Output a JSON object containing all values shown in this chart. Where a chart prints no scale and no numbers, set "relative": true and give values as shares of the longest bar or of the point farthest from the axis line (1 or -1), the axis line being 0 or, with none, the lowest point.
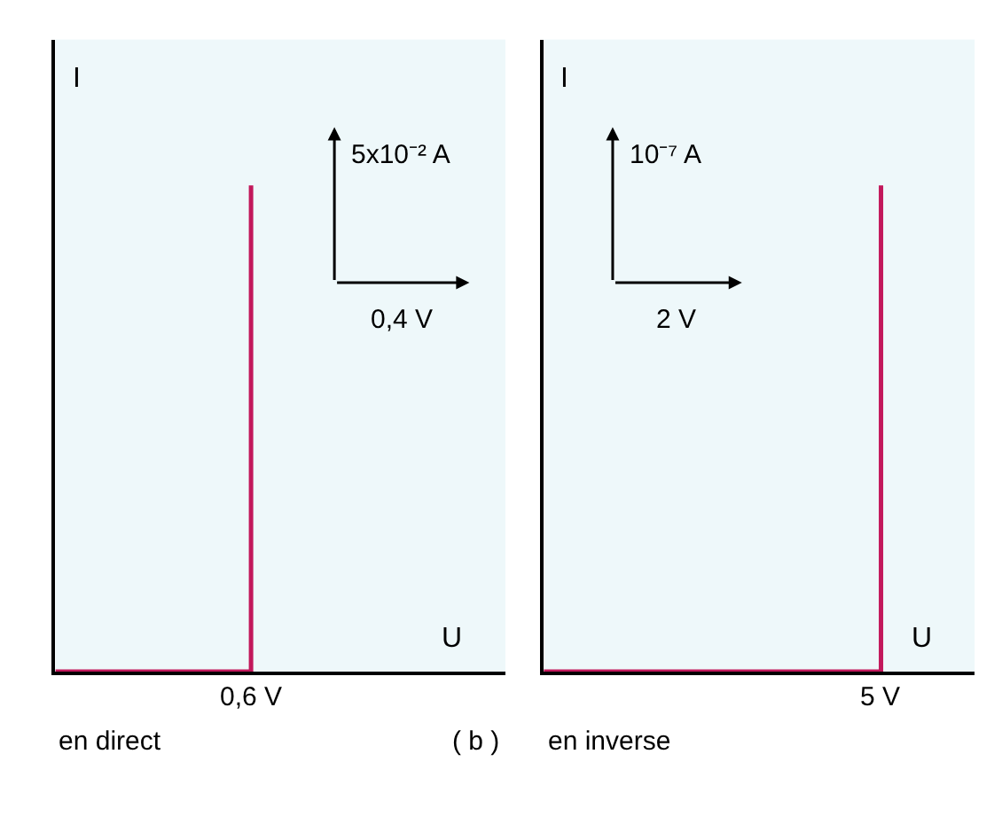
{
  "chart_data": [
    {
      "type": "step",
      "xlabel": "U",
      "ylabel": "I",
      "relative": true,
      "marker": "none",
      "line_style": "solid",
      "categories": [
        null,
        null,
        null,
        null,
        null,
        null,
        null,
        null,
        null,
        null,
        null,
        null
      ],
      "series": [
        {
          "color": "#c2185b",
          "values": [
            0,
            0,
            0,
            0,
            0,
            1,
            null,
            null,
            null,
            null,
            null,
            null
          ]
        }
      ],
      "annotations": [
        "5x10⁻² A",
        "0,4 V",
        "en direct",
        "( b )",
        "0,6 V"
      ]
    },
    {
      "type": "step",
      "xlabel": "U",
      "ylabel": "I",
      "relative": true,
      "marker": "none",
      "line_style": "solid",
      "categories": [
        null,
        null,
        null,
        null,
        null,
        null,
        null,
        null,
        null,
        null,
        null,
        null
      ],
      "series": [
        {
          "color": "#c2185b",
          "values": [
            0,
            0,
            0,
            0,
            0,
            0,
            0,
            0,
            0,
            1,
            null,
            null
          ]
        }
      ],
      "annotations": [
        "10⁻⁷ A",
        "2 V",
        "en inverse",
        "5 V"
      ]
    }
  ]
}
